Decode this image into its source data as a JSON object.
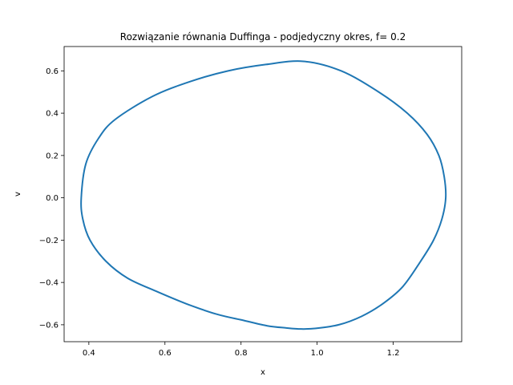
{
  "chart_data": {
    "type": "line",
    "title": "Rozwiązanie równania Duffinga - podjedyczny okres, f= 0.2",
    "xlabel": "x",
    "ylabel": "v",
    "xlim": [
      0.335,
      1.38
    ],
    "ylim": [
      -0.68,
      0.715
    ],
    "xticks": [
      0.4,
      0.6,
      0.8,
      1.0,
      1.2
    ],
    "xtick_labels": [
      "0.4",
      "0.6",
      "0.8",
      "1.0",
      "1.2"
    ],
    "yticks": [
      -0.6,
      -0.4,
      -0.2,
      0.0,
      0.2,
      0.4,
      0.6
    ],
    "ytick_labels": [
      "−0.6",
      "−0.4",
      "−0.2",
      "0.0",
      "0.2",
      "0.4",
      "0.6"
    ],
    "grid": false,
    "series": [
      {
        "color": "#1f77b4",
        "x": [
          1.338,
          1.334,
          1.32,
          1.289,
          1.237,
          1.162,
          1.063,
          0.964,
          0.865,
          0.766,
          0.667,
          0.568,
          0.469,
          0.425,
          0.392,
          0.38,
          0.384,
          0.403,
          0.445,
          0.502,
          0.575,
          0.655,
          0.736,
          0.808,
          0.869,
          0.919,
          0.958,
          0.997,
          1.057,
          1.117,
          1.173,
          1.225,
          1.272,
          1.306,
          1.328,
          1.338
        ],
        "v": [
          0.0,
          0.1,
          0.2,
          0.3,
          0.4,
          0.5,
          0.6,
          0.645,
          0.63,
          0.6,
          0.55,
          0.48,
          0.37,
          0.28,
          0.16,
          0.0,
          -0.1,
          -0.2,
          -0.3,
          -0.38,
          -0.44,
          -0.5,
          -0.55,
          -0.58,
          -0.605,
          -0.615,
          -0.62,
          -0.617,
          -0.6,
          -0.56,
          -0.5,
          -0.42,
          -0.3,
          -0.2,
          -0.1,
          0.0
        ]
      }
    ]
  }
}
